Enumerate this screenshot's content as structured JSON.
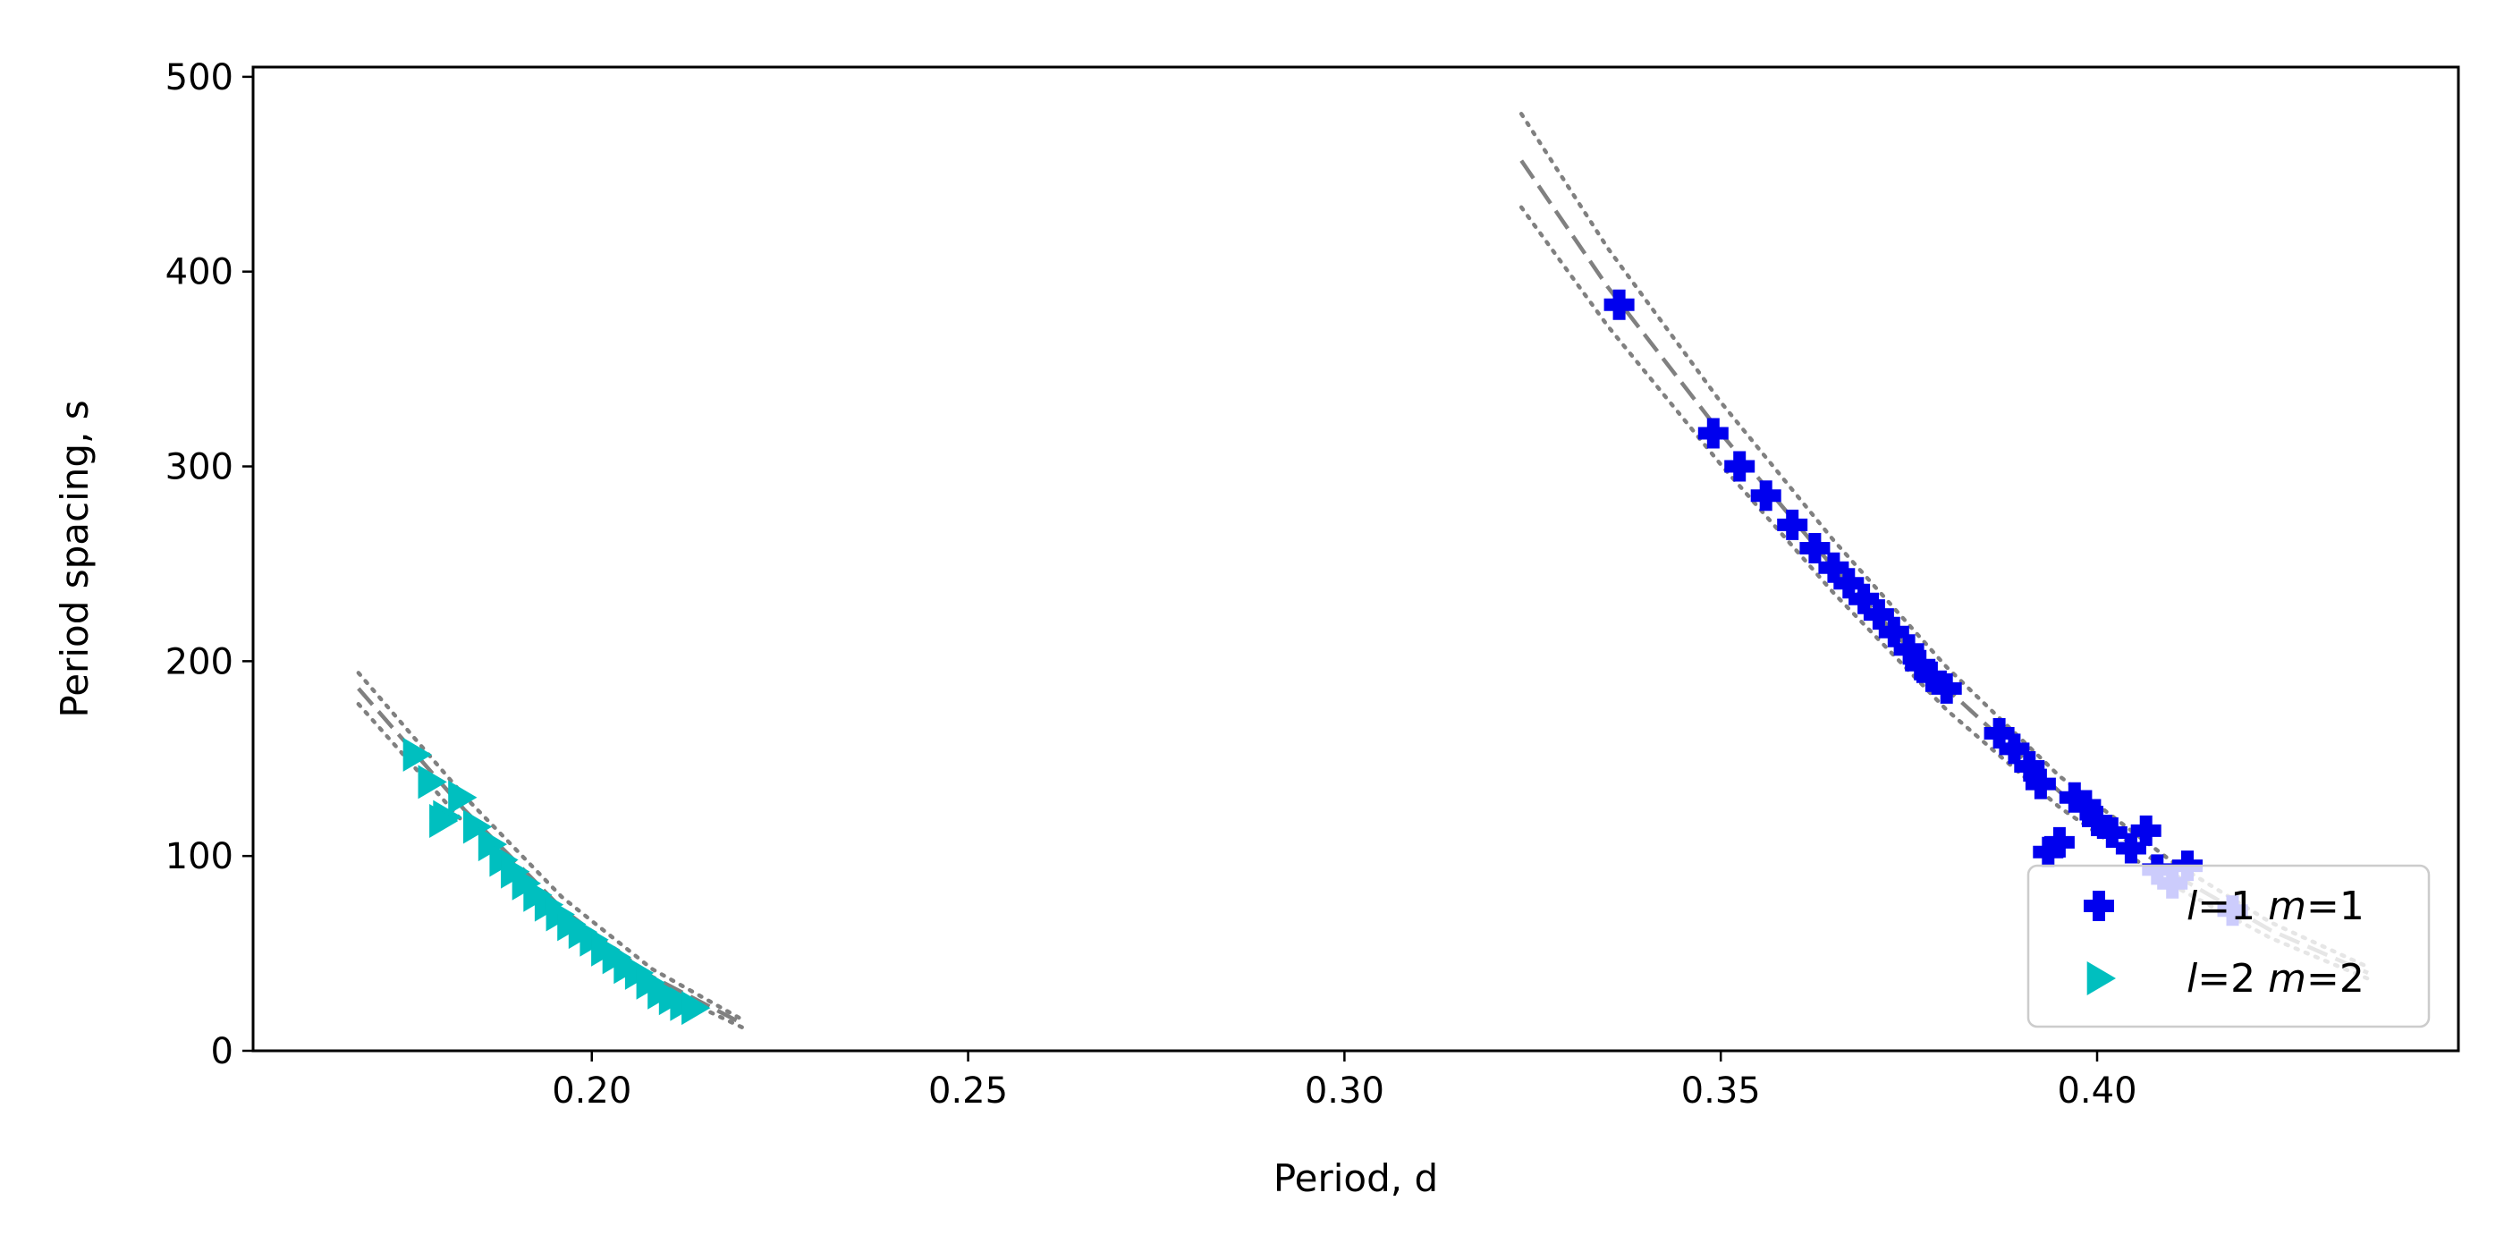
{
  "chart_data": {
    "type": "scatter",
    "title": "",
    "xlabel": "Period, d",
    "ylabel": "Period spacing, s",
    "xlim": [
      0.155,
      0.448
    ],
    "ylim": [
      0,
      505
    ],
    "xticks": [
      0.2,
      0.25,
      0.3,
      0.35,
      0.4
    ],
    "xtick_labels": [
      "0.20",
      "0.25",
      "0.30",
      "0.35",
      "0.40"
    ],
    "yticks": [
      0,
      100,
      200,
      300,
      400,
      500
    ],
    "ytick_labels": [
      "0",
      "100",
      "200",
      "300",
      "400",
      "500"
    ],
    "grid": false,
    "legend_position": "lower-right",
    "colors": {
      "l1m1": "#0000ee",
      "l2m2": "#00bfbf",
      "fit": "#808080"
    },
    "legend": [
      {
        "marker": "plus",
        "color": "#0000ee",
        "l": "1",
        "m": "1"
      },
      {
        "marker": "triangle-right",
        "color": "#00bfbf",
        "l": "2",
        "m": "2"
      }
    ],
    "series": [
      {
        "marker": "plus",
        "color": "#0000ee",
        "x": [
          0.3365,
          0.349,
          0.3525,
          0.356,
          0.3595,
          0.3625,
          0.365,
          0.367,
          0.369,
          0.371,
          0.373,
          0.375,
          0.3765,
          0.378,
          0.38,
          0.387,
          0.389,
          0.391,
          0.3925,
          0.3935,
          0.395,
          0.397,
          0.3985,
          0.4,
          0.402,
          0.4045,
          0.4065,
          0.408,
          0.41,
          0.412,
          0.418
        ],
        "y": [
          383,
          317,
          300,
          285,
          270,
          258,
          248,
          240,
          232,
          224,
          215,
          206,
          198,
          192,
          186,
          163,
          155,
          146,
          137,
          102,
          107,
          130,
          126,
          118,
          112,
          104,
          113,
          93,
          86,
          95,
          72
        ]
      },
      {
        "marker": "triangle-right",
        "color": "#00bfbf",
        "x": [
          0.1765,
          0.1785,
          0.1805,
          0.1825,
          0.1845,
          0.1865,
          0.188,
          0.1895,
          0.191,
          0.1925,
          0.194,
          0.1955,
          0.197,
          0.1985,
          0.2,
          0.2015,
          0.203,
          0.2045,
          0.206,
          0.2075,
          0.209,
          0.2105,
          0.212,
          0.2135,
          0.18
        ],
        "y": [
          152,
          138,
          120,
          130,
          115,
          106,
          98,
          92,
          86,
          80,
          75,
          70,
          65,
          61,
          57,
          52,
          48,
          43,
          40,
          35,
          30,
          27,
          24,
          22,
          118
        ]
      }
    ],
    "fit_lines": [
      {
        "style": "dashed",
        "x": [
          0.169,
          0.183,
          0.196,
          0.208,
          0.22
        ],
        "y": [
          186,
          124,
          73,
          38,
          14
        ]
      },
      {
        "style": "dotted",
        "x": [
          0.169,
          0.183,
          0.196,
          0.208,
          0.22
        ],
        "y": [
          194,
          131,
          79,
          42,
          16
        ]
      },
      {
        "style": "dotted",
        "x": [
          0.169,
          0.183,
          0.196,
          0.208,
          0.22
        ],
        "y": [
          178,
          117,
          68,
          34,
          12
        ]
      },
      {
        "style": "dashed",
        "x": [
          0.3235,
          0.335,
          0.35,
          0.365,
          0.38,
          0.395,
          0.41,
          0.423,
          0.436
        ],
        "y": [
          457,
          392,
          317,
          248,
          186,
          133,
          91,
          62,
          40
        ]
      },
      {
        "style": "dotted",
        "x": [
          0.3235,
          0.335,
          0.35,
          0.365,
          0.38,
          0.395,
          0.41,
          0.423,
          0.436
        ],
        "y": [
          481,
          412,
          333,
          262,
          197,
          141,
          97,
          66,
          43
        ]
      },
      {
        "style": "dotted",
        "x": [
          0.3235,
          0.335,
          0.35,
          0.365,
          0.38,
          0.395,
          0.41,
          0.423,
          0.436
        ],
        "y": [
          433,
          372,
          301,
          235,
          175,
          125,
          85,
          58,
          37
        ]
      }
    ]
  }
}
